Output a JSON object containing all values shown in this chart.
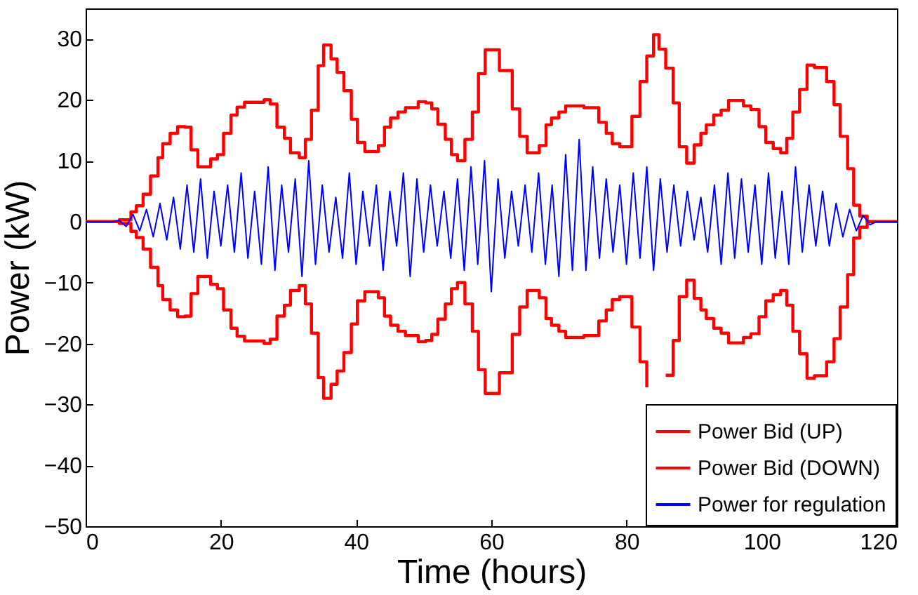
{
  "chart_data": {
    "type": "line",
    "xlabel": "Time (hours)",
    "ylabel": "Power (kW)",
    "xlim": [
      0,
      120
    ],
    "ylim": [
      -50,
      35
    ],
    "xticks": [
      0,
      20,
      40,
      60,
      80,
      100,
      120
    ],
    "yticks": [
      -50,
      -40,
      -30,
      -20,
      -10,
      0,
      10,
      20,
      30
    ],
    "grid": false,
    "legend": "bottom right",
    "series": [
      {
        "name": "Power Bid (UP)",
        "type": "step",
        "color": "#ff0000",
        "x": [
          0,
          5,
          6.7,
          7.5,
          8.5,
          9.6,
          10.7,
          11.4,
          12.5,
          13.6,
          14.7,
          15.6,
          16.6,
          18.5,
          19.5,
          20.4,
          21.5,
          22.4,
          23.5,
          26.4,
          27.3,
          28.3,
          29.4,
          30.3,
          31.6,
          32.5,
          33.4,
          34.4,
          35.2,
          36.3,
          37.2,
          38.2,
          39.3,
          40.2,
          41.3,
          43.3,
          44.2,
          45.1,
          46.2,
          47.3,
          49.2,
          50.3,
          51.2,
          52.1,
          53.2,
          54.1,
          55,
          56.1,
          57.2,
          58.1,
          59.1,
          61.2,
          63.1,
          64.2,
          65.3,
          67.1,
          68.1,
          68.9,
          70,
          71,
          73.7,
          75.9,
          77,
          77.9,
          79,
          80.8,
          82,
          83,
          84,
          84.8,
          85.8,
          86.9,
          87.8,
          88.9,
          90,
          91,
          91.8,
          92.9,
          94,
          95.1,
          97.3,
          98.4,
          99.6,
          100.6,
          101.7,
          102.8,
          103.7,
          104.6,
          105.6,
          106.7,
          107.8,
          109.6,
          110.7,
          111.6,
          112.7,
          113.6,
          114.5,
          115.6,
          120
        ],
        "values": [
          0,
          0.3,
          1.6,
          2.6,
          4.5,
          7.5,
          10.5,
          12.8,
          14.5,
          15.6,
          15.5,
          11.8,
          9,
          10.3,
          11,
          14.5,
          17.5,
          18.8,
          19.6,
          20,
          19.3,
          15.5,
          13.7,
          11.3,
          10.5,
          13.5,
          18.3,
          25.6,
          29,
          26.7,
          24.5,
          21.5,
          16.8,
          13,
          11.5,
          12.5,
          15.5,
          17,
          18,
          18.7,
          19.7,
          19.5,
          18.5,
          16,
          13.5,
          11,
          10,
          13.5,
          18,
          24.3,
          28.2,
          24.8,
          18.5,
          14,
          11.3,
          12.5,
          15.9,
          17,
          18,
          19,
          18.7,
          16.3,
          14.5,
          12.8,
          12.3,
          17.3,
          23,
          27.2,
          30.7,
          28.3,
          25.2,
          19.5,
          12.3,
          9.6,
          12.6,
          14.5,
          15.9,
          17.5,
          18.3,
          19.9,
          19,
          18.4,
          15.6,
          13,
          12,
          11.3,
          13.7,
          18,
          21.7,
          25.7,
          25.3,
          23,
          19.2,
          14,
          8.7,
          2.7,
          0.9,
          0,
          0
        ]
      },
      {
        "name": "Power Bid (DOWN)",
        "type": "step",
        "color": "#ff0000",
        "x": [
          0,
          5,
          6.7,
          7.5,
          8.5,
          9.6,
          10.7,
          11.4,
          12.5,
          13.6,
          14.7,
          15.6,
          16.6,
          18.5,
          19.5,
          20.4,
          21.5,
          22.4,
          23.5,
          26.4,
          27.3,
          28.3,
          29.4,
          30.3,
          31.6,
          32.5,
          33.4,
          34.4,
          35.2,
          36.3,
          37.2,
          38.2,
          39.3,
          40.2,
          41.3,
          43.3,
          44.2,
          45.1,
          46.2,
          47.3,
          49.2,
          50.3,
          51.2,
          52.1,
          53.2,
          54.1,
          55,
          56.1,
          57.2,
          58.1,
          59.1,
          61.2,
          63.1,
          64.2,
          65.3,
          67.1,
          68.1,
          68.9,
          70,
          71,
          73.7,
          75.9,
          77,
          77.9,
          79,
          80.8,
          82,
          83,
          84,
          84.8,
          85.8,
          86.9,
          87.8,
          88.9,
          90,
          91,
          91.8,
          92.9,
          94,
          95.1,
          97.3,
          98.4,
          99.6,
          100.6,
          101.7,
          102.8,
          103.7,
          104.6,
          105.6,
          106.7,
          107.8,
          109.6,
          110.7,
          111.6,
          112.7,
          113.6,
          114.5,
          115.6,
          120
        ],
        "values": [
          0,
          -0.3,
          -1.6,
          -2.6,
          -4.5,
          -7.5,
          -10.5,
          -12.8,
          -14.5,
          -15.6,
          -15.5,
          -11.8,
          -9,
          -10.3,
          -11,
          -14.5,
          -17.5,
          -18.8,
          -19.6,
          -20,
          -19.3,
          -15.5,
          -13.7,
          -11.3,
          -10.5,
          -13.5,
          -18.3,
          -25.6,
          -29,
          -26.7,
          -24.5,
          -21.5,
          -16.8,
          -13,
          -11.5,
          -12.5,
          -15.5,
          -17,
          -18,
          -18.7,
          -19.7,
          -19.5,
          -18.5,
          -16,
          -13.5,
          -11,
          -10,
          -13.5,
          -18,
          -24.3,
          -28.2,
          -24.8,
          -18.5,
          -14,
          -11.3,
          -12.5,
          -15.9,
          -17,
          -18,
          -19,
          -18.7,
          -16.3,
          -14.5,
          -12.8,
          -12.3,
          -17.3,
          -23,
          -27.2,
          null,
          null,
          -25.2,
          -19.5,
          -12.3,
          -9.6,
          -12.6,
          -14.5,
          -15.9,
          -17.5,
          -18.3,
          -19.9,
          -19,
          -18.4,
          -15.6,
          -13,
          -12,
          -11.3,
          -13.7,
          -18,
          -21.7,
          -25.7,
          -25.3,
          -23,
          -19.2,
          -14,
          -8.7,
          -2.7,
          -0.9,
          0,
          0
        ]
      },
      {
        "name": "Power for regulation",
        "color": "#0000ff",
        "x": [
          0,
          1,
          2,
          3,
          4,
          5,
          6,
          7,
          8,
          9,
          10,
          11,
          12,
          13,
          14,
          15,
          16,
          17,
          18,
          19,
          20,
          21,
          22,
          23,
          24,
          25,
          26,
          27,
          28,
          29,
          30,
          31,
          32,
          33,
          34,
          35,
          36,
          37,
          38,
          39,
          40,
          41,
          42,
          43,
          44,
          45,
          46,
          47,
          48,
          49,
          50,
          51,
          52,
          53,
          54,
          55,
          56,
          57,
          58,
          59,
          60,
          61,
          62,
          63,
          64,
          65,
          66,
          67,
          68,
          69,
          70,
          71,
          72,
          73,
          74,
          75,
          76,
          77,
          78,
          79,
          80,
          81,
          82,
          83,
          84,
          85,
          86,
          87,
          88,
          89,
          90,
          91,
          92,
          93,
          94,
          95,
          96,
          97,
          98,
          99,
          100,
          101,
          102,
          103,
          104,
          105,
          106,
          107,
          108,
          109,
          110,
          111,
          112,
          113,
          114,
          115,
          116,
          117,
          118,
          119,
          120
        ],
        "values": [
          0,
          0,
          0,
          0,
          0,
          0.2,
          -0.8,
          1.2,
          -1.5,
          2,
          -2.5,
          3,
          -3,
          4,
          -4.5,
          6,
          -5,
          7,
          -6,
          5,
          -4,
          6,
          -5,
          8,
          -6,
          5,
          -7,
          9,
          -8,
          6,
          -5,
          7,
          -9,
          10,
          -7,
          6,
          -5,
          4,
          -6,
          8,
          -7,
          5,
          -4,
          6,
          -8,
          5,
          -4,
          8,
          -9,
          7,
          -5,
          6,
          -4,
          5,
          -6,
          7,
          -8,
          9,
          -7,
          10,
          -11.5,
          7,
          -6,
          5,
          -4,
          6,
          -5,
          8,
          -7,
          6,
          -9,
          11,
          -8,
          13.5,
          -8,
          9,
          -6,
          7,
          -5,
          6,
          -7,
          8,
          -6,
          9,
          -8,
          7,
          -5,
          6,
          -4,
          5,
          -3,
          4,
          -5,
          6,
          -7,
          8,
          -6,
          7,
          -5,
          6,
          -7,
          8,
          -6,
          5,
          -7,
          9,
          -5,
          6,
          -4,
          5,
          -4,
          3,
          -2.5,
          2,
          -1.5,
          1,
          -0.5,
          0,
          0,
          0,
          0
        ]
      }
    ]
  }
}
